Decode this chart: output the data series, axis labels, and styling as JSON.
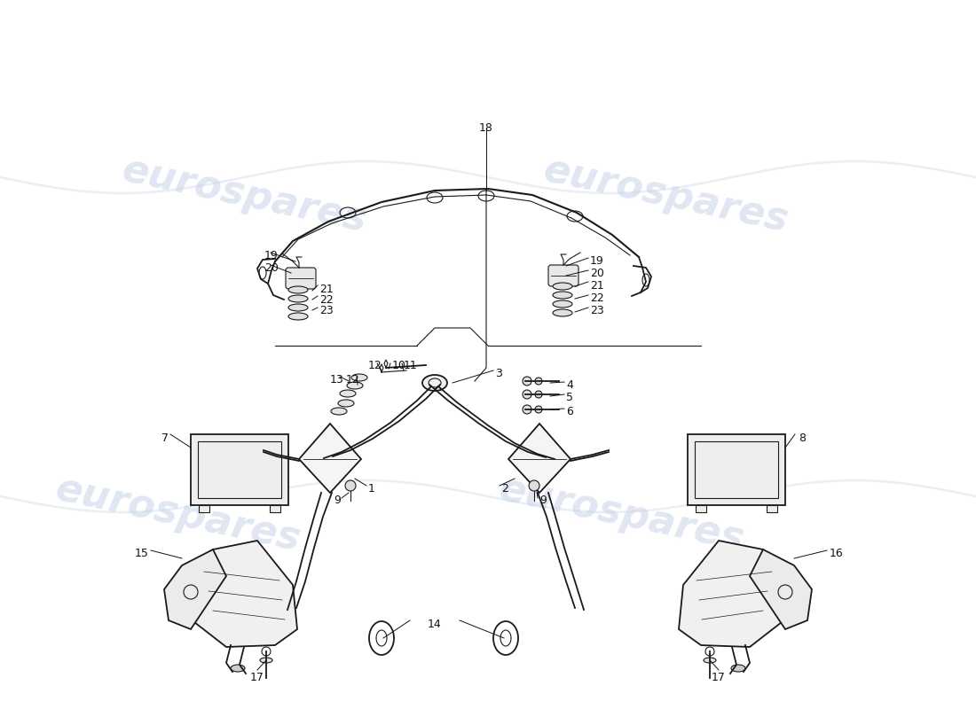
{
  "bg_color": "#ffffff",
  "watermark_color": "#c8d4e8",
  "watermark_text": "eurospares",
  "line_color": "#1a1a1a",
  "label_color": "#111111",
  "fig_w": 11.0,
  "fig_h": 8.0,
  "dpi": 100
}
